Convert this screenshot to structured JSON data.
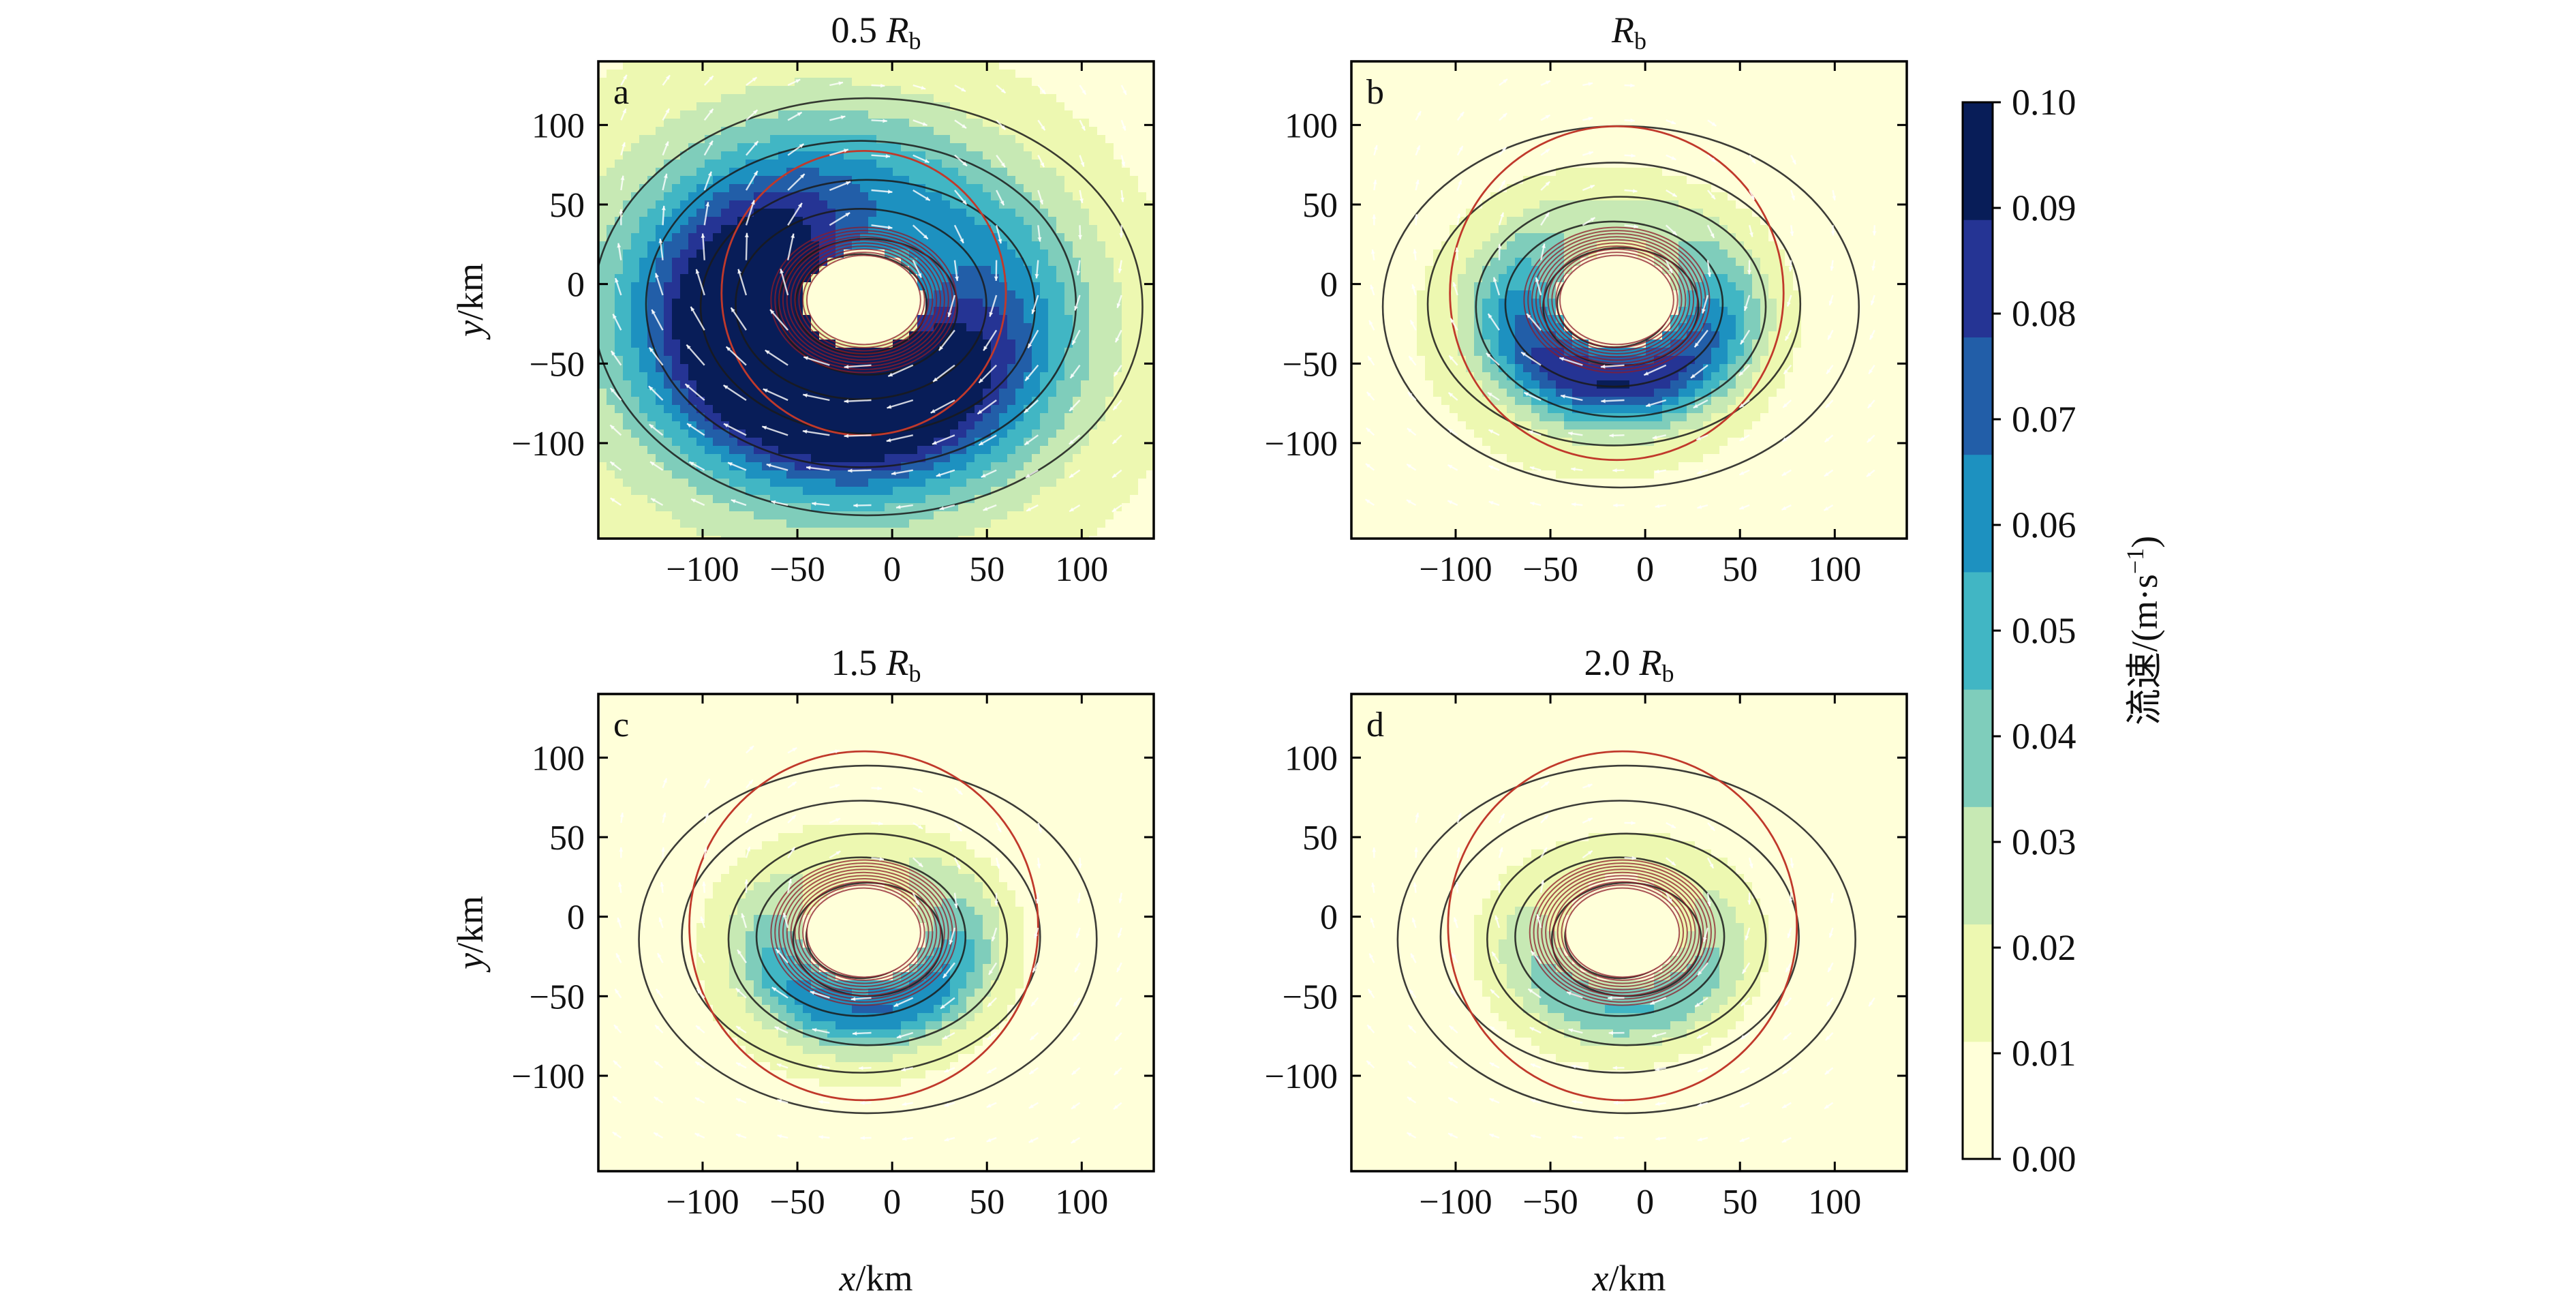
{
  "chart_data": [
    {
      "panel_id": "a",
      "panel_label": "a",
      "title_value": "0.5",
      "title_symbol": "R",
      "title_subscript": "b",
      "type": "heatmap",
      "xlabel_var": "",
      "xlabel_unit": "",
      "ylabel_var": "y",
      "ylabel_unit": "/km",
      "xlim": [
        -155,
        138
      ],
      "ylim": [
        -160,
        140
      ],
      "xticks": [
        -100,
        -50,
        0,
        50,
        100
      ],
      "yticks": [
        100,
        50,
        0,
        -50,
        -100
      ],
      "xtick_labels": [
        "−100",
        "−50",
        "0",
        "50",
        "100"
      ],
      "ytick_labels": [
        "100",
        "50",
        "0",
        "−50",
        "−100"
      ],
      "eddy_center": [
        -15,
        -10
      ],
      "core_radius": [
        30,
        28
      ],
      "reference_circle_radius": 75,
      "max_speed": 0.1,
      "ring_radius": 60,
      "ring_width": 55,
      "background_speed": 0.04,
      "asymmetry_angle_deg": 240,
      "asymmetry_amplitude": 0.45
    },
    {
      "panel_id": "b",
      "panel_label": "b",
      "title_value": "",
      "title_symbol": "R",
      "title_subscript": "b",
      "type": "heatmap",
      "xlabel_var": "",
      "xlabel_unit": "",
      "ylabel_var": "",
      "ylabel_unit": "",
      "xlim": [
        -155,
        138
      ],
      "ylim": [
        -160,
        140
      ],
      "xticks": [
        -100,
        -50,
        0,
        50,
        100
      ],
      "yticks": [
        100,
        50,
        0,
        -50,
        -100
      ],
      "xtick_labels": [
        "−100",
        "−50",
        "0",
        "50",
        "100"
      ],
      "ytick_labels": [
        "100",
        "50",
        "0",
        "−50",
        "−100"
      ],
      "eddy_center": [
        -15,
        -10
      ],
      "core_radius": [
        30,
        28
      ],
      "reference_circle_radius": 88,
      "max_speed": 0.075,
      "ring_radius": 52,
      "ring_width": 28,
      "background_speed": 0.012,
      "asymmetry_angle_deg": 270,
      "asymmetry_amplitude": 0.6
    },
    {
      "panel_id": "c",
      "panel_label": "c",
      "title_value": "1.5",
      "title_symbol": "R",
      "title_subscript": "b",
      "type": "heatmap",
      "xlabel_var": "x",
      "xlabel_unit": "/km",
      "ylabel_var": "y",
      "ylabel_unit": "/km",
      "xlim": [
        -155,
        138
      ],
      "ylim": [
        -160,
        140
      ],
      "xticks": [
        -100,
        -50,
        0,
        50,
        100
      ],
      "yticks": [
        100,
        50,
        0,
        -50,
        -100
      ],
      "xtick_labels": [
        "−100",
        "−50",
        "0",
        "50",
        "100"
      ],
      "ytick_labels": [
        "100",
        "50",
        "0",
        "−50",
        "−100"
      ],
      "eddy_center": [
        -15,
        -10
      ],
      "core_radius": [
        30,
        28
      ],
      "reference_circle_radius": 92,
      "max_speed": 0.055,
      "ring_radius": 50,
      "ring_width": 24,
      "background_speed": 0.01,
      "asymmetry_angle_deg": 280,
      "asymmetry_amplitude": 0.65
    },
    {
      "panel_id": "d",
      "panel_label": "d",
      "title_value": "2.0",
      "title_symbol": "R",
      "title_subscript": "b",
      "type": "heatmap",
      "xlabel_var": "x",
      "xlabel_unit": "/km",
      "ylabel_var": "",
      "ylabel_unit": "",
      "xlim": [
        -155,
        138
      ],
      "ylim": [
        -160,
        140
      ],
      "xticks": [
        -100,
        -50,
        0,
        50,
        100
      ],
      "yticks": [
        100,
        50,
        0,
        -50,
        -100
      ],
      "xtick_labels": [
        "−100",
        "−50",
        "0",
        "50",
        "100"
      ],
      "ytick_labels": [
        "100",
        "50",
        "0",
        "−50",
        "−100"
      ],
      "eddy_center": [
        -12,
        -10
      ],
      "core_radius": [
        30,
        28
      ],
      "reference_circle_radius": 92,
      "max_speed": 0.035,
      "ring_radius": 50,
      "ring_width": 22,
      "background_speed": 0.008,
      "asymmetry_angle_deg": 280,
      "asymmetry_amplitude": 0.6
    }
  ],
  "colorbar": {
    "label": "流速/(m·s",
    "label_exponent": "−1",
    "label_close": ")",
    "min": 0.0,
    "max": 0.1,
    "ticks": [
      0.1,
      0.09,
      0.08,
      0.07,
      0.06,
      0.05,
      0.04,
      0.03,
      0.02,
      0.01,
      0.0
    ],
    "tick_labels": [
      "0.10",
      "0.09",
      "0.08",
      "0.07",
      "0.06",
      "0.05",
      "0.04",
      "0.03",
      "0.02",
      "0.01",
      "0.00"
    ],
    "colors": [
      "#ffffd9",
      "#edf8b1",
      "#c7e9b4",
      "#7fcdbb",
      "#41b6c4",
      "#1d91c0",
      "#225ea8",
      "#253494",
      "#081d58"
    ]
  },
  "colors": {
    "reference_circle": "#c0392b",
    "eddy_core_contours": "#8e1b2a",
    "speed_contours": "#1a1a1a",
    "vectors": "#ffffff"
  }
}
